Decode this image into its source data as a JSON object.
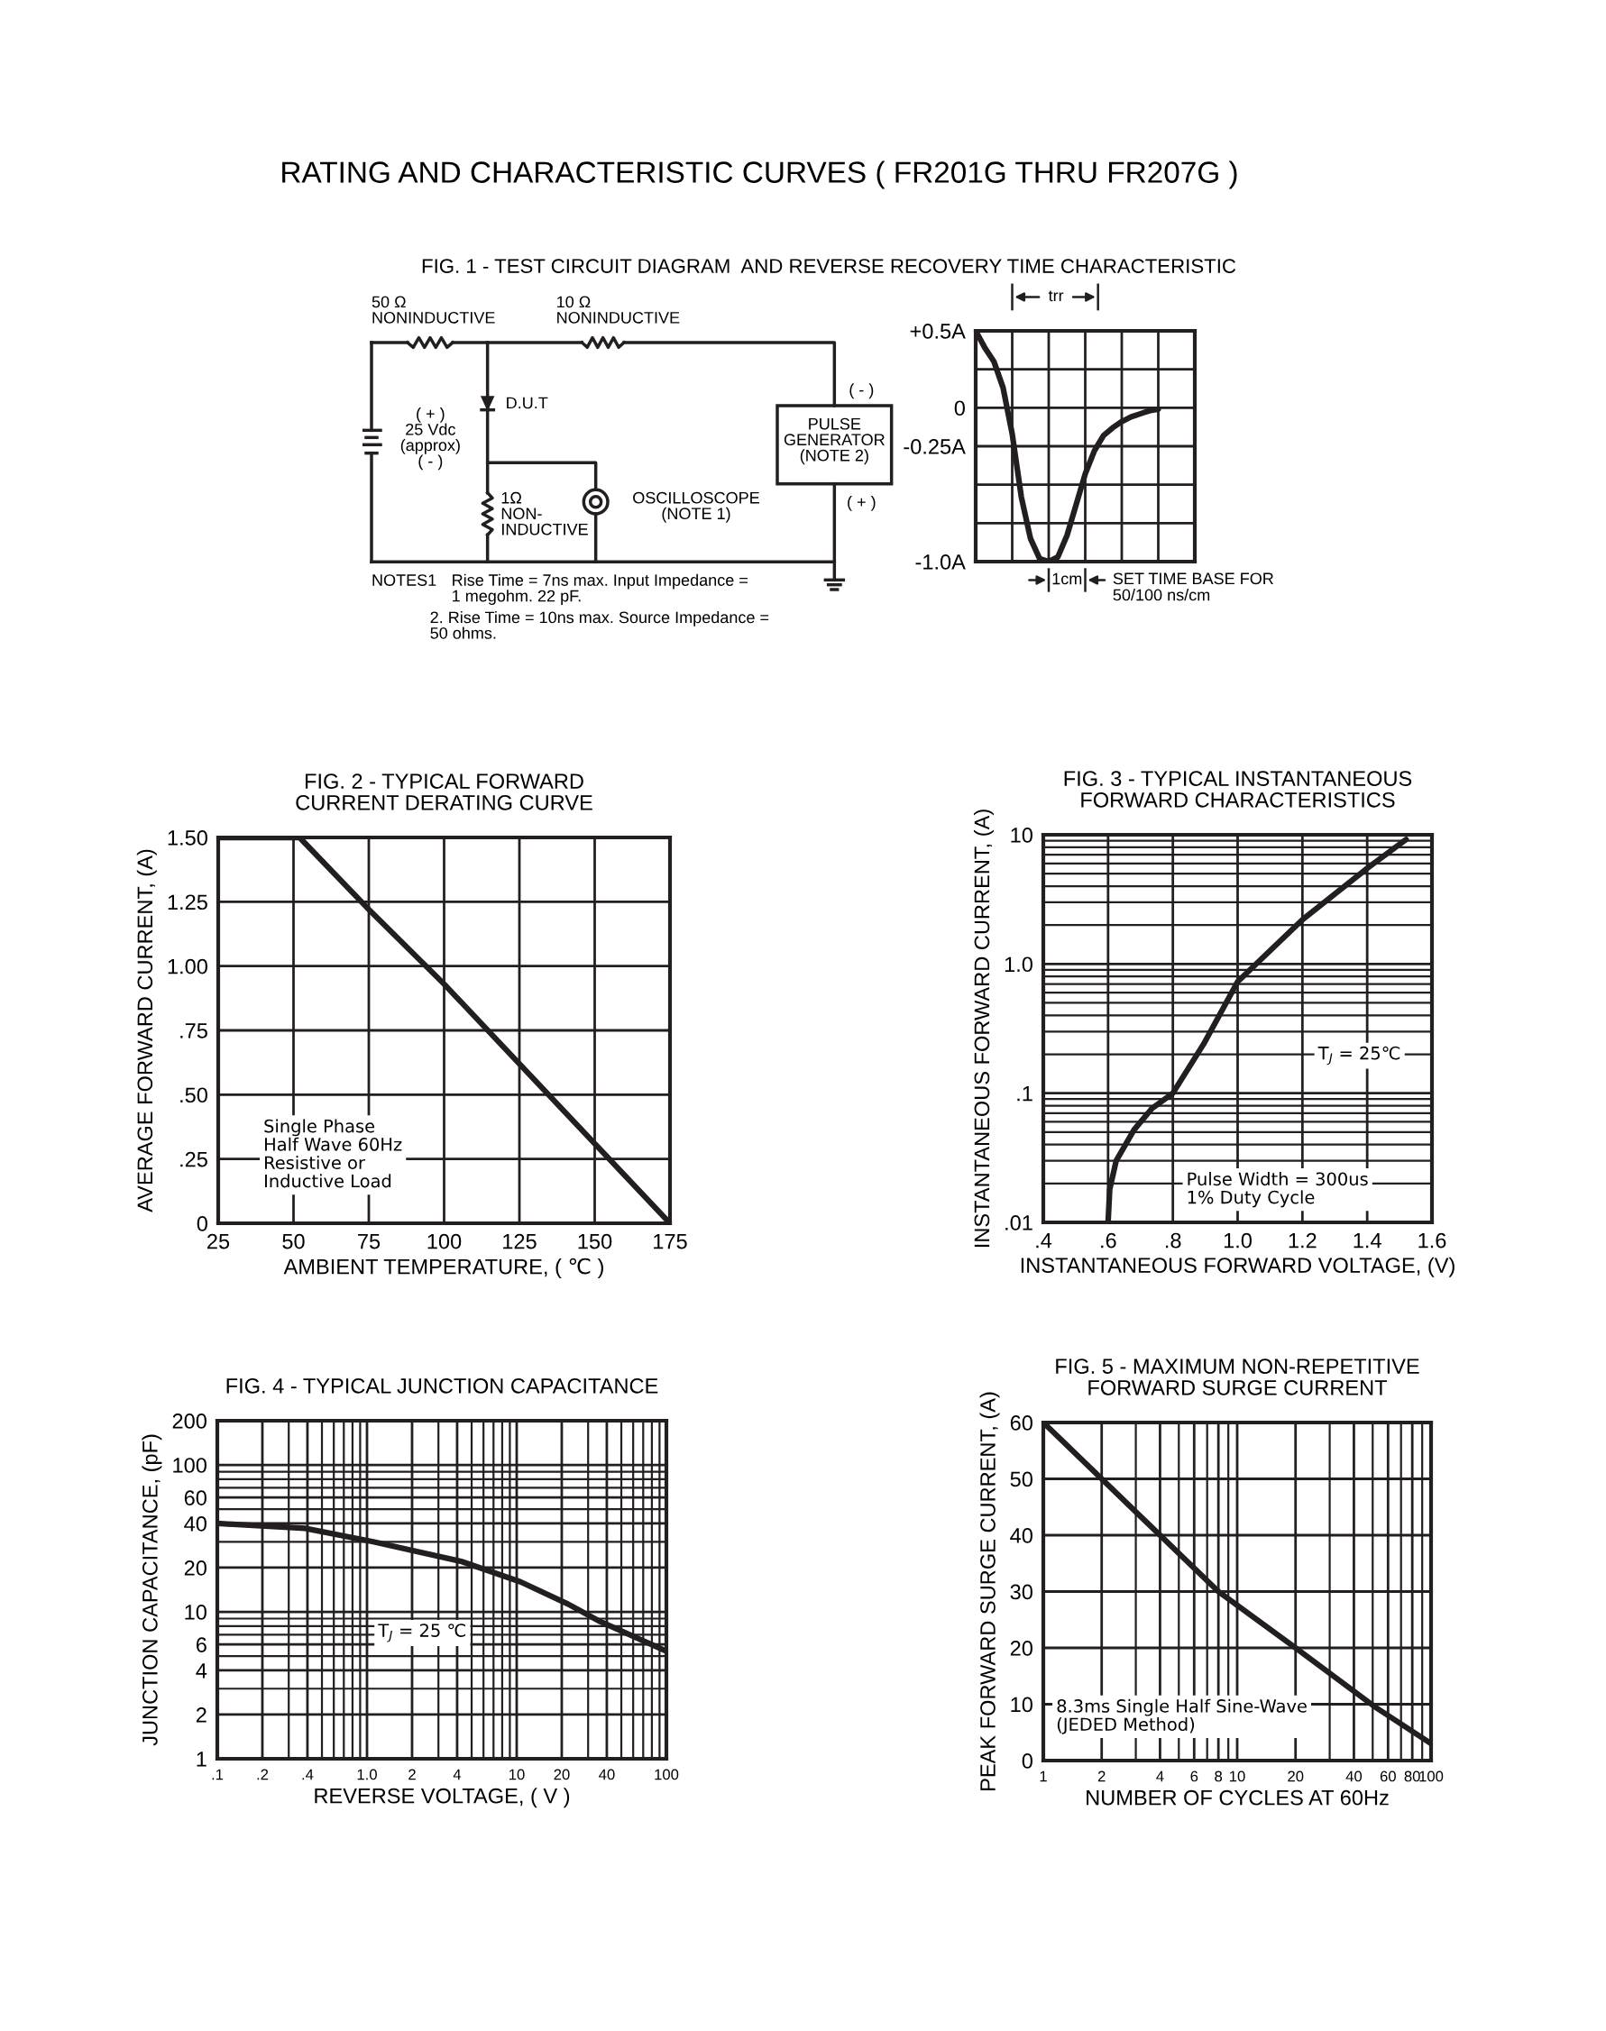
{
  "chart_data": [
    {
      "type": "other",
      "title": "RATING AND CHARACTERISTIC CURVES ( FR201G THRU FR207G )",
      "subtitle": "FIG. 1 - TEST CIRCUIT DIAGRAM  AND REVERSE RECOVERY TIME CHARACTERISTIC",
      "annotations": [
        "50 Ω\nNONINDUCTIVE",
        "10 Ω\nNONINDUCTIVE",
        "D.U.T",
        "( + )\n25 Vdc\n(approx)\n( - )",
        "1Ω\nNON-\nINDUCTIVE",
        "OSCILLOSCOPE\n(NOTE 1)",
        "PULSE\nGENERATOR\n(NOTE 2)",
        "( - )",
        "( + )",
        "NOTES1",
        "Rise Time = 7ns max. Input Impedance =\n1 megohm. 22 pF.",
        "2. Rise Time = 10ns max. Source Impedance =\n50 ohms."
      ]
    },
    {
      "type": "line",
      "categories": [
        null,
        null,
        null,
        null,
        null,
        null,
        null,
        null,
        null,
        null,
        null,
        null,
        null,
        null,
        null,
        null,
        null,
        null,
        null,
        null,
        null,
        null,
        null,
        null,
        null
      ],
      "series": [
        {
          "color": "#231f20",
          "values": [
            0.5,
            0.39,
            0.3,
            0.13,
            -0.17,
            -0.58,
            -0.85,
            -0.98,
            -1.0,
            -0.97,
            -0.83,
            -0.63,
            -0.43,
            -0.28,
            -0.18,
            -0.13,
            -0.09,
            -0.06,
            -0.04,
            -0.02,
            -0.01,
            null,
            null,
            null,
            null
          ]
        }
      ],
      "ylim": [
        -1.0,
        0.5
      ],
      "yticks": [
        {
          "value": 0.5,
          "label": "+0.5A"
        },
        {
          "value": 0.25,
          "label": null
        },
        {
          "value": 0,
          "label": "0"
        },
        {
          "value": -0.25,
          "label": "-0.25A"
        },
        {
          "value": -0.5,
          "label": null
        },
        {
          "value": -0.75,
          "label": null
        },
        {
          "value": -1.0,
          "label": "-1.0A"
        }
      ],
      "grid": true,
      "tick_labels": "y",
      "annotations": [
        "trr",
        "1cm",
        "SET TIME BASE FOR\n50/100 ns/cm"
      ]
    },
    {
      "type": "line",
      "title": "FIG. 2 - TYPICAL FORWARD\nCURRENT DERATING CURVE",
      "xlabel": "AMBIENT TEMPERATURE, ( ℃ )",
      "ylabel": "AVERAGE FORWARD CURRENT, (A)",
      "x": [
        25,
        52,
        75,
        100,
        125,
        150,
        175
      ],
      "series": [
        {
          "color": "#231f20",
          "values": [
            1.5,
            1.5,
            1.22,
            0.93,
            0.62,
            0.31,
            0
          ]
        }
      ],
      "xlim": [
        25,
        175
      ],
      "xticks": [
        25,
        50,
        75,
        100,
        125,
        150,
        175
      ],
      "ylim": [
        0,
        1.5
      ],
      "yticks": [
        {
          "value": 0,
          "label": "0"
        },
        {
          "value": 0.25,
          "label": ".25"
        },
        {
          "value": 0.5,
          "label": ".50"
        },
        {
          "value": 0.75,
          "label": ".75"
        },
        {
          "value": 1.0,
          "label": "1.00"
        },
        {
          "value": 1.25,
          "label": "1.25"
        },
        {
          "value": 1.5,
          "label": "1.50"
        }
      ],
      "grid": true,
      "annotations": [
        "Single Phase\nHalf Wave 60Hz\nResistive or\nInductive Load"
      ]
    },
    {
      "type": "line",
      "title": "FIG. 3 - TYPICAL INSTANTANEOUS\nFORWARD CHARACTERISTICS",
      "xlabel": "INSTANTANEOUS FORWARD VOLTAGE, (V)",
      "ylabel": "INSTANTANEOUS FORWARD CURRENT, (A)",
      "x": [
        0.6,
        0.605,
        0.625,
        0.68,
        0.735,
        0.8,
        0.895,
        1.0,
        1.2,
        1.4,
        1.52
      ],
      "series": [
        {
          "color": "#231f20",
          "values": [
            0.01,
            0.018,
            0.03,
            0.052,
            0.076,
            0.1,
            0.24,
            0.73,
            2.2,
            5.5,
            9.2
          ]
        }
      ],
      "xlim": [
        0.4,
        1.6
      ],
      "xticks": [
        {
          "value": 0.4,
          "label": ".4"
        },
        {
          "value": 0.6,
          "label": ".6"
        },
        {
          "value": 0.8,
          "label": ".8"
        },
        {
          "value": 1.0,
          "label": "1.0"
        },
        {
          "value": 1.2,
          "label": "1.2"
        },
        {
          "value": 1.4,
          "label": "1.4"
        },
        {
          "value": 1.6,
          "label": "1.6"
        }
      ],
      "ylim": [
        0.01,
        10
      ],
      "yticks": [
        {
          "value": 0.01,
          "label": ".01"
        },
        {
          "value": 0.1,
          "label": ".1"
        },
        {
          "value": 1,
          "label": "1.0"
        },
        10
      ],
      "log": "y",
      "grid": true,
      "annotations": [
        "T$_{J}$ = 25℃",
        "Pulse Width = 300us\n1% Duty Cycle"
      ]
    },
    {
      "type": "line",
      "title": "FIG. 4 - TYPICAL JUNCTION CAPACITANCE",
      "xlabel": "REVERSE VOLTAGE, ( V )",
      "ylabel": "JUNCTION CAPACITANCE, (pF)",
      "x": [
        0.1,
        0.385,
        1.1,
        4.3,
        10.6,
        22,
        36,
        100
      ],
      "series": [
        {
          "color": "#231f20",
          "values": [
            40,
            37,
            30,
            22,
            16,
            11.3,
            8.6,
            5.4
          ]
        }
      ],
      "xlim": [
        0.1,
        100
      ],
      "xticks": [
        {
          "value": 0.1,
          "label": ".1"
        },
        {
          "value": 0.2,
          "label": ".2"
        },
        {
          "value": 0.4,
          "label": ".4"
        },
        {
          "value": 1,
          "label": "1.0"
        },
        2,
        4,
        10,
        20,
        40,
        100
      ],
      "ylim": [
        1,
        200
      ],
      "yticks": [
        1,
        2,
        4,
        6,
        10,
        20,
        40,
        60,
        100,
        200
      ],
      "log": "xy",
      "grid": true,
      "annotations": [
        "T$_{J}$ = 25 ℃"
      ]
    },
    {
      "type": "line",
      "title": "FIG. 5 - MAXIMUM NON-REPETITIVE\nFORWARD SURGE CURRENT",
      "xlabel": "NUMBER OF CYCLES AT 60Hz",
      "ylabel": "PEAK FORWARD SURGE CURRENT, (A)",
      "x": [
        1,
        2,
        4,
        8,
        20,
        52,
        100
      ],
      "series": [
        {
          "color": "#231f20",
          "values": [
            60,
            50,
            40,
            30,
            20,
            9.4,
            3
          ]
        }
      ],
      "xlim": [
        1,
        100
      ],
      "xticks": [
        1,
        2,
        4,
        6,
        8,
        10,
        20,
        40,
        60,
        80,
        100
      ],
      "ylim": [
        0,
        60
      ],
      "yticks": [
        0,
        10,
        20,
        30,
        40,
        50,
        60
      ],
      "log": "x",
      "grid": true,
      "annotations": [
        "8.3ms Single Half Sine-Wave\n(JEDED Method)"
      ]
    }
  ]
}
